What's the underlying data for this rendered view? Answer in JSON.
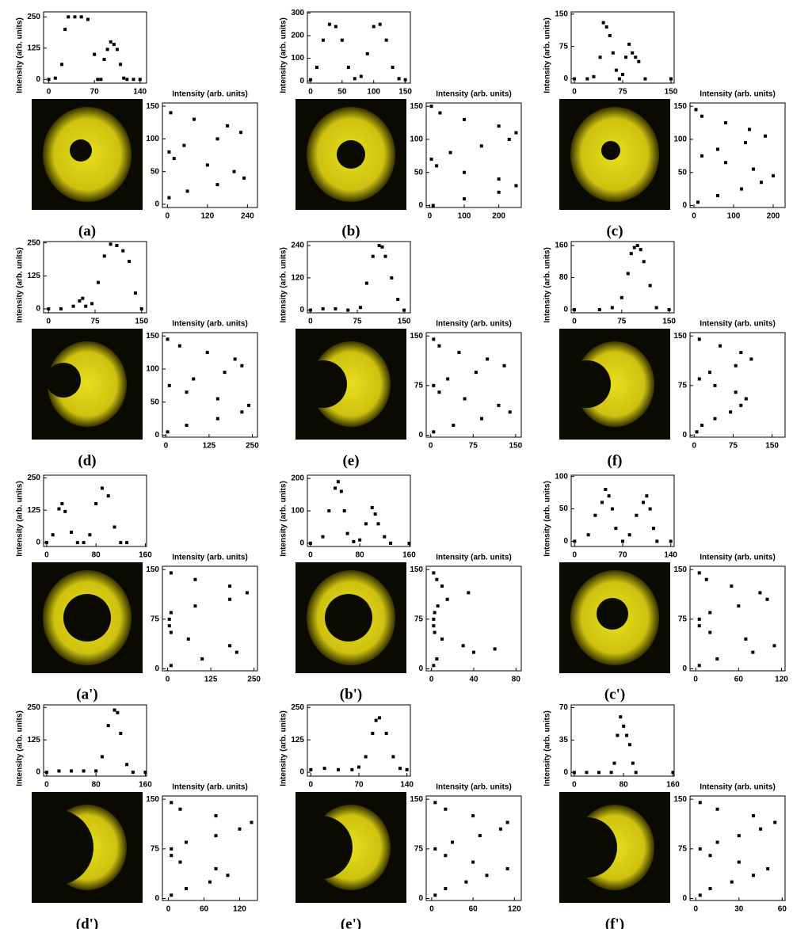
{
  "panel_labels": [
    "(a)",
    "(b)",
    "(c)",
    "(d)",
    "(e)",
    "(f)",
    "(a')",
    "(b')",
    "(c')",
    "(d')",
    "(e')",
    "(f')"
  ],
  "chart_data": [
    {
      "type": "scatter",
      "ylabel": "Intensity (arb. units)",
      "x": [
        0,
        10,
        20,
        25,
        30,
        40,
        50,
        60,
        70,
        75,
        80,
        85,
        90,
        95,
        100,
        105,
        110,
        115,
        120,
        130,
        140
      ],
      "values": [
        0,
        5,
        60,
        200,
        250,
        250,
        250,
        240,
        100,
        0,
        0,
        80,
        120,
        150,
        140,
        120,
        60,
        5,
        0,
        0,
        0
      ],
      "xlim": [
        -8,
        150
      ],
      "ylim": [
        -15,
        270
      ],
      "xticks": [
        0,
        70,
        140
      ],
      "yticks": [
        0,
        125,
        250
      ],
      "color": "#000000"
    },
    {
      "type": "scatter",
      "xlabel": "Intensity (arb. units)",
      "x": [
        5,
        60,
        150,
        230,
        200,
        120,
        20,
        5,
        50,
        150,
        220,
        180,
        80,
        10
      ],
      "values": [
        10,
        20,
        30,
        40,
        50,
        60,
        70,
        80,
        90,
        100,
        110,
        120,
        130,
        140
      ],
      "xlim": [
        -15,
        270
      ],
      "ylim": [
        -5,
        155
      ],
      "xticks": [
        0,
        120,
        240
      ],
      "yticks": [
        0,
        50,
        100,
        150
      ],
      "color": "#000000"
    },
    {
      "type": "scatter",
      "ylabel": "Intensity (arb. units)",
      "x": [
        0,
        10,
        20,
        30,
        40,
        50,
        60,
        70,
        80,
        90,
        100,
        110,
        120,
        130,
        140,
        150
      ],
      "values": [
        5,
        60,
        180,
        250,
        240,
        180,
        60,
        10,
        20,
        120,
        240,
        250,
        180,
        60,
        10,
        5
      ],
      "xlim": [
        -5,
        158
      ],
      "ylim": [
        -10,
        305
      ],
      "xticks": [
        0,
        50,
        100,
        150
      ],
      "yticks": [
        0,
        100,
        200,
        300
      ],
      "color": "#000000"
    },
    {
      "type": "scatter",
      "xlabel": "Intensity (arb. units)",
      "x": [
        10,
        100,
        200,
        250,
        200,
        100,
        20,
        5,
        60,
        150,
        230,
        250,
        200,
        100,
        30,
        5
      ],
      "values": [
        0,
        10,
        20,
        30,
        40,
        50,
        60,
        70,
        80,
        90,
        100,
        110,
        120,
        130,
        140,
        150
      ],
      "xlim": [
        -10,
        265
      ],
      "ylim": [
        -3,
        155
      ],
      "xticks": [
        0,
        100,
        200
      ],
      "yticks": [
        0,
        50,
        100,
        150
      ],
      "color": "#000000"
    },
    {
      "type": "scatter",
      "ylabel": "Intensity (arb. units)",
      "x": [
        0,
        20,
        30,
        40,
        45,
        50,
        55,
        60,
        65,
        70,
        75,
        80,
        85,
        90,
        95,
        100,
        110,
        150
      ],
      "values": [
        0,
        0,
        5,
        50,
        130,
        120,
        100,
        60,
        20,
        0,
        10,
        50,
        80,
        60,
        50,
        40,
        0,
        0
      ],
      "xlim": [
        -5,
        155
      ],
      "ylim": [
        -10,
        155
      ],
      "xticks": [
        0,
        75,
        150
      ],
      "yticks": [
        0,
        75,
        150
      ],
      "color": "#000000"
    },
    {
      "type": "scatter",
      "xlabel": "Intensity (arb. units)",
      "x": [
        10,
        60,
        120,
        170,
        200,
        150,
        80,
        20,
        60,
        130,
        180,
        140,
        80,
        20,
        5
      ],
      "values": [
        5,
        15,
        25,
        35,
        45,
        55,
        65,
        75,
        85,
        95,
        105,
        115,
        125,
        135,
        145
      ],
      "xlim": [
        -10,
        230
      ],
      "ylim": [
        -3,
        155
      ],
      "xticks": [
        0,
        100,
        200
      ],
      "yticks": [
        0,
        50,
        100,
        150
      ],
      "color": "#000000"
    },
    {
      "type": "scatter",
      "ylabel": "Intensity (arb. units)",
      "x": [
        0,
        20,
        40,
        50,
        55,
        60,
        70,
        80,
        90,
        100,
        110,
        120,
        130,
        140,
        150
      ],
      "values": [
        0,
        0,
        10,
        30,
        40,
        10,
        20,
        100,
        200,
        245,
        240,
        220,
        180,
        60,
        0
      ],
      "xlim": [
        -8,
        158
      ],
      "ylim": [
        -15,
        255
      ],
      "xticks": [
        0,
        75,
        150
      ],
      "yticks": [
        0,
        125,
        250
      ],
      "color": "#000000"
    },
    {
      "type": "scatter",
      "xlabel": "Intensity (arb. units)",
      "x": [
        5,
        60,
        150,
        220,
        240,
        150,
        60,
        10,
        80,
        170,
        220,
        200,
        120,
        40,
        5
      ],
      "values": [
        5,
        15,
        25,
        35,
        45,
        55,
        65,
        75,
        85,
        95,
        105,
        115,
        125,
        135,
        145
      ],
      "xlim": [
        -10,
        265
      ],
      "ylim": [
        -3,
        155
      ],
      "xticks": [
        0,
        125,
        250
      ],
      "yticks": [
        0,
        50,
        100,
        150
      ],
      "color": "#000000"
    },
    {
      "type": "scatter",
      "ylabel": "Intensity (arb. units)",
      "x": [
        0,
        20,
        40,
        60,
        80,
        90,
        100,
        110,
        115,
        120,
        130,
        140,
        150
      ],
      "values": [
        0,
        5,
        5,
        0,
        10,
        100,
        200,
        240,
        235,
        200,
        120,
        40,
        0
      ],
      "xlim": [
        -5,
        160
      ],
      "ylim": [
        -10,
        255
      ],
      "xticks": [
        0,
        75,
        150
      ],
      "yticks": [
        0,
        120,
        240
      ],
      "color": "#000000"
    },
    {
      "type": "scatter",
      "xlabel": "Intensity (arb. units)",
      "x": [
        5,
        40,
        90,
        140,
        120,
        60,
        15,
        5,
        30,
        80,
        130,
        100,
        50,
        15,
        5
      ],
      "values": [
        5,
        15,
        25,
        35,
        45,
        55,
        65,
        75,
        85,
        95,
        105,
        115,
        125,
        135,
        145
      ],
      "xlim": [
        -8,
        160
      ],
      "ylim": [
        -3,
        155
      ],
      "xticks": [
        0,
        75,
        150
      ],
      "yticks": [
        0,
        75,
        150
      ],
      "color": "#000000"
    },
    {
      "type": "scatter",
      "ylabel": "Intensity (arb. units)",
      "x": [
        0,
        40,
        60,
        75,
        85,
        90,
        95,
        100,
        105,
        110,
        120,
        130,
        150
      ],
      "values": [
        0,
        0,
        5,
        30,
        90,
        140,
        155,
        160,
        150,
        120,
        60,
        5,
        0
      ],
      "xlim": [
        -5,
        158
      ],
      "ylim": [
        -8,
        170
      ],
      "xticks": [
        0,
        75,
        150
      ],
      "yticks": [
        0,
        80,
        160
      ],
      "color": "#000000"
    },
    {
      "type": "scatter",
      "xlabel": "Intensity (arb. units)",
      "x": [
        5,
        15,
        40,
        70,
        90,
        100,
        80,
        40,
        10,
        30,
        80,
        110,
        90,
        50,
        10
      ],
      "values": [
        5,
        15,
        25,
        35,
        45,
        55,
        65,
        75,
        85,
        95,
        105,
        115,
        125,
        135,
        145
      ],
      "xlim": [
        -8,
        175
      ],
      "ylim": [
        -3,
        155
      ],
      "xticks": [
        0,
        75,
        150
      ],
      "yticks": [
        0,
        75,
        150
      ],
      "color": "#000000"
    },
    {
      "type": "scatter",
      "ylabel": "Intensity (arb. units)",
      "x": [
        0,
        10,
        20,
        25,
        30,
        40,
        50,
        60,
        70,
        80,
        90,
        100,
        110,
        120,
        130
      ],
      "values": [
        0,
        30,
        130,
        150,
        120,
        40,
        0,
        0,
        30,
        150,
        210,
        180,
        60,
        0,
        0
      ],
      "xlim": [
        -5,
        162
      ],
      "ylim": [
        -15,
        260
      ],
      "xticks": [
        0,
        80,
        160
      ],
      "yticks": [
        0,
        125,
        250
      ],
      "color": "#000000"
    },
    {
      "type": "scatter",
      "xlabel": "Intensity (arb. units)",
      "x": [
        10,
        100,
        200,
        180,
        60,
        10,
        5,
        5,
        10,
        80,
        180,
        230,
        180,
        80,
        10
      ],
      "values": [
        5,
        15,
        25,
        35,
        45,
        55,
        65,
        75,
        85,
        95,
        105,
        115,
        125,
        135,
        145
      ],
      "xlim": [
        -15,
        260
      ],
      "ylim": [
        -3,
        155
      ],
      "xticks": [
        0,
        125,
        250
      ],
      "yticks": [
        0,
        75,
        150
      ],
      "color": "#000000"
    },
    {
      "type": "scatter",
      "ylabel": "Intensity (arb. units)",
      "x": [
        0,
        20,
        30,
        40,
        45,
        50,
        55,
        60,
        70,
        80,
        90,
        100,
        105,
        110,
        120,
        130,
        160
      ],
      "values": [
        0,
        20,
        100,
        170,
        190,
        160,
        100,
        30,
        5,
        10,
        60,
        110,
        90,
        60,
        20,
        0,
        0
      ],
      "xlim": [
        -5,
        162
      ],
      "ylim": [
        -10,
        210
      ],
      "xticks": [
        0,
        80,
        160
      ],
      "yticks": [
        0,
        100,
        200
      ],
      "color": "#000000"
    },
    {
      "type": "scatter",
      "xlabel": "Intensity (arb. units)",
      "x": [
        2,
        5,
        40,
        60,
        30,
        10,
        3,
        2,
        2,
        3,
        6,
        15,
        35,
        10,
        5,
        2
      ],
      "values": [
        5,
        15,
        25,
        30,
        35,
        45,
        55,
        65,
        75,
        85,
        95,
        105,
        115,
        125,
        135,
        145
      ],
      "xlim": [
        -5,
        85
      ],
      "ylim": [
        -3,
        155
      ],
      "xticks": [
        0,
        40,
        80
      ],
      "yticks": [
        0,
        75,
        150
      ],
      "color": "#000000"
    },
    {
      "type": "scatter",
      "ylabel": "Intensity (arb. units)",
      "x": [
        0,
        20,
        30,
        40,
        45,
        50,
        55,
        60,
        70,
        80,
        90,
        100,
        105,
        110,
        115,
        120,
        140
      ],
      "values": [
        0,
        10,
        40,
        60,
        80,
        70,
        50,
        20,
        0,
        10,
        40,
        60,
        70,
        50,
        20,
        0,
        0
      ],
      "xlim": [
        -5,
        145
      ],
      "ylim": [
        -8,
        102
      ],
      "xticks": [
        0,
        70,
        140
      ],
      "yticks": [
        0,
        50,
        100
      ],
      "color": "#000000"
    },
    {
      "type": "scatter",
      "xlabel": "Intensity (arb. units)",
      "x": [
        5,
        30,
        80,
        110,
        70,
        20,
        5,
        5,
        20,
        60,
        100,
        90,
        50,
        15,
        5
      ],
      "values": [
        5,
        15,
        25,
        35,
        45,
        55,
        65,
        75,
        85,
        95,
        105,
        115,
        125,
        135,
        145
      ],
      "xlim": [
        -8,
        125
      ],
      "ylim": [
        -3,
        155
      ],
      "xticks": [
        0,
        60,
        120
      ],
      "yticks": [
        0,
        75,
        150
      ],
      "color": "#000000"
    },
    {
      "type": "scatter",
      "ylabel": "Intensity (arb. units)",
      "x": [
        0,
        20,
        40,
        60,
        80,
        90,
        100,
        110,
        115,
        120,
        130,
        140,
        160
      ],
      "values": [
        0,
        5,
        5,
        5,
        5,
        60,
        180,
        240,
        230,
        150,
        30,
        0,
        0
      ],
      "xlim": [
        -5,
        162
      ],
      "ylim": [
        -15,
        260
      ],
      "xticks": [
        0,
        80,
        160
      ],
      "yticks": [
        0,
        125,
        250
      ],
      "color": "#000000"
    },
    {
      "type": "scatter",
      "xlabel": "Intensity (arb. units)",
      "x": [
        5,
        30,
        70,
        100,
        80,
        20,
        5,
        5,
        30,
        80,
        120,
        140,
        80,
        20,
        5
      ],
      "values": [
        5,
        15,
        25,
        35,
        45,
        55,
        65,
        75,
        85,
        95,
        105,
        115,
        125,
        135,
        145
      ],
      "xlim": [
        -10,
        150
      ],
      "ylim": [
        -3,
        155
      ],
      "xticks": [
        0,
        60,
        120
      ],
      "yticks": [
        0,
        75,
        150
      ],
      "color": "#000000"
    },
    {
      "type": "scatter",
      "ylabel": "Intensity (arb. units)",
      "x": [
        0,
        20,
        40,
        60,
        70,
        80,
        90,
        95,
        100,
        110,
        120,
        130,
        140
      ],
      "values": [
        10,
        15,
        10,
        10,
        20,
        60,
        150,
        200,
        210,
        150,
        60,
        15,
        10
      ],
      "xlim": [
        -5,
        145
      ],
      "ylim": [
        -15,
        260
      ],
      "xticks": [
        0,
        70,
        140
      ],
      "yticks": [
        0,
        125,
        250
      ],
      "color": "#000000"
    },
    {
      "type": "scatter",
      "xlabel": "Intensity (arb. units)",
      "x": [
        5,
        20,
        50,
        80,
        110,
        60,
        20,
        5,
        30,
        70,
        100,
        110,
        60,
        20,
        5
      ],
      "values": [
        5,
        15,
        25,
        35,
        45,
        55,
        65,
        75,
        85,
        95,
        105,
        115,
        125,
        135,
        145
      ],
      "xlim": [
        -8,
        130
      ],
      "ylim": [
        -3,
        155
      ],
      "xticks": [
        0,
        60,
        120
      ],
      "yticks": [
        0,
        75,
        150
      ],
      "color": "#000000"
    },
    {
      "type": "scatter",
      "ylabel": "Intensity (arb. units)",
      "x": [
        0,
        20,
        40,
        60,
        65,
        70,
        75,
        80,
        85,
        90,
        95,
        100,
        160
      ],
      "values": [
        0,
        0,
        0,
        0,
        10,
        40,
        60,
        50,
        40,
        30,
        10,
        0,
        0
      ],
      "xlim": [
        -5,
        162
      ],
      "ylim": [
        -4,
        73
      ],
      "xticks": [
        0,
        80,
        160
      ],
      "yticks": [
        0,
        35,
        70
      ],
      "color": "#000000"
    },
    {
      "type": "scatter",
      "xlabel": "Intensity (arb. units)",
      "x": [
        3,
        10,
        25,
        40,
        50,
        30,
        10,
        3,
        15,
        30,
        45,
        55,
        40,
        15,
        3
      ],
      "values": [
        5,
        15,
        25,
        35,
        45,
        55,
        65,
        75,
        85,
        95,
        105,
        115,
        125,
        135,
        145
      ],
      "xlim": [
        -4,
        62
      ],
      "ylim": [
        -3,
        155
      ],
      "xticks": [
        0,
        30,
        60
      ],
      "yticks": [
        0,
        75,
        150
      ],
      "color": "#000000"
    }
  ]
}
